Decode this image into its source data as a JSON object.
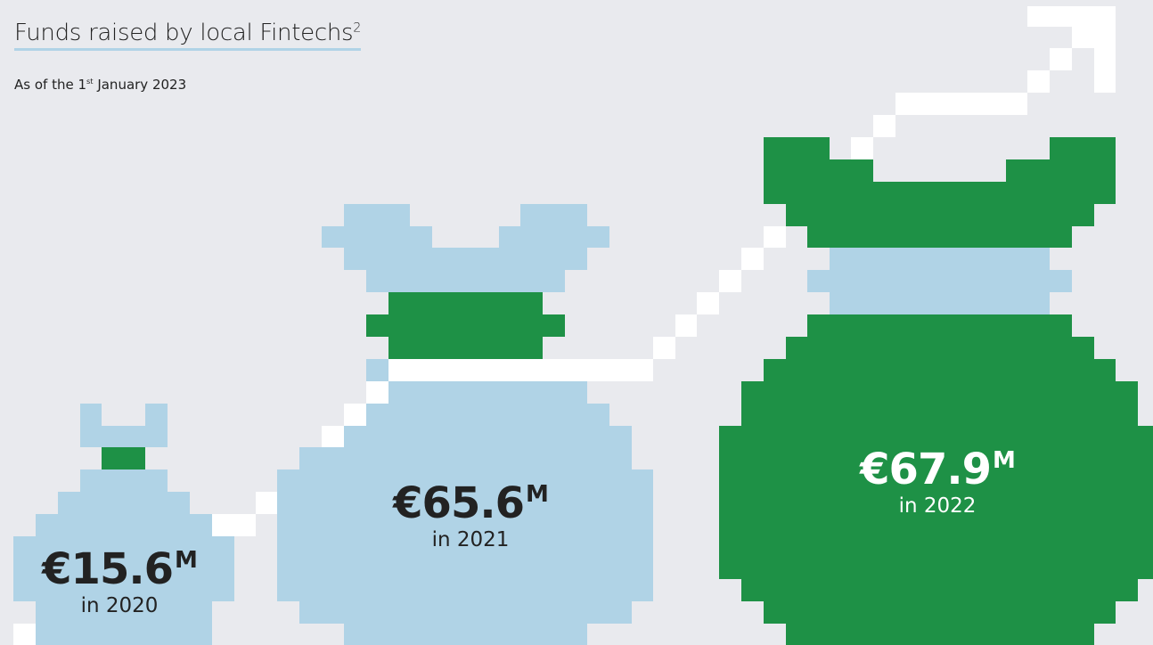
{
  "header": {
    "title": "Funds raised by local Fintechs",
    "title_note": "2",
    "subtitle_start": "As of the 1",
    "subtitle_ordinal": "st",
    "subtitle_end": " January 2023"
  },
  "items": [
    {
      "amount": "€15.6",
      "unit": "M",
      "period": "in 2020"
    },
    {
      "amount": "€65.6",
      "unit": "M",
      "period": "in 2021"
    },
    {
      "amount": "€67.9",
      "unit": "M",
      "period": "in 2022"
    }
  ]
}
